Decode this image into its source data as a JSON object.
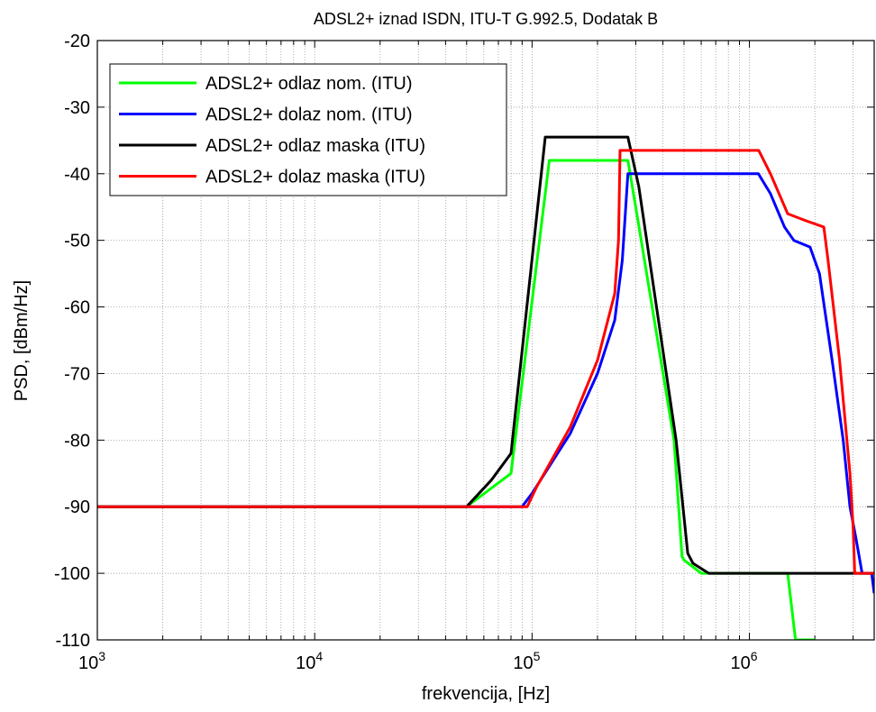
{
  "chart_data": {
    "type": "line",
    "title": "ADSL2+ iznad ISDN, ITU-T G.992.5, Dodatak B",
    "xlabel": "frekvencija, [Hz]",
    "ylabel": "PSD, [dBm/Hz]",
    "x_scale": "log",
    "xlim": [
      1000,
      3750000
    ],
    "ylim": [
      -110,
      -20
    ],
    "grid": true,
    "legend_position": "top-left",
    "x_ticks": [
      {
        "value": 1000,
        "base": "10",
        "exp": "3"
      },
      {
        "value": 10000,
        "base": "10",
        "exp": "4"
      },
      {
        "value": 100000,
        "base": "10",
        "exp": "5"
      },
      {
        "value": 1000000,
        "base": "10",
        "exp": "6"
      }
    ],
    "y_ticks": [
      -20,
      -30,
      -40,
      -50,
      -60,
      -70,
      -80,
      -90,
      -100,
      -110
    ],
    "series": [
      {
        "name": "ADSL2+ odlaz nom. (ITU)",
        "color": "#00ff00",
        "points": [
          [
            1000,
            -90
          ],
          [
            50000,
            -90
          ],
          [
            80000,
            -85
          ],
          [
            120000,
            -38
          ],
          [
            276000,
            -38
          ],
          [
            300000,
            -45
          ],
          [
            450000,
            -80
          ],
          [
            490000,
            -97.5
          ],
          [
            500000,
            -98
          ],
          [
            600000,
            -100
          ],
          [
            1500000,
            -100
          ],
          [
            1630000,
            -110
          ],
          [
            2000000,
            -110
          ]
        ]
      },
      {
        "name": "ADSL2+ dolaz nom. (ITU)",
        "color": "#0000ff",
        "points": [
          [
            1000,
            -90
          ],
          [
            90000,
            -90
          ],
          [
            100000,
            -88
          ],
          [
            150000,
            -79
          ],
          [
            200000,
            -70
          ],
          [
            240000,
            -62
          ],
          [
            260000,
            -53
          ],
          [
            276000,
            -40
          ],
          [
            1100000,
            -40
          ],
          [
            1250000,
            -43
          ],
          [
            1450000,
            -48
          ],
          [
            1600000,
            -50
          ],
          [
            1900000,
            -51
          ],
          [
            2100000,
            -55
          ],
          [
            2400000,
            -68
          ],
          [
            2700000,
            -80
          ],
          [
            2900000,
            -90
          ],
          [
            3100000,
            -95
          ],
          [
            3300000,
            -100
          ],
          [
            3650000,
            -100
          ],
          [
            3750000,
            -103
          ]
        ]
      },
      {
        "name": "ADSL2+ odlaz maska (ITU)",
        "color": "#000000",
        "points": [
          [
            1000,
            -90
          ],
          [
            50000,
            -90
          ],
          [
            65000,
            -86
          ],
          [
            80000,
            -82
          ],
          [
            115000,
            -34.5
          ],
          [
            276000,
            -34.5
          ],
          [
            310000,
            -42
          ],
          [
            460000,
            -80
          ],
          [
            520000,
            -97
          ],
          [
            550000,
            -98.5
          ],
          [
            650000,
            -100
          ],
          [
            3750000,
            -100
          ]
        ]
      },
      {
        "name": "ADSL2+ dolaz maska (ITU)",
        "color": "#ff0000",
        "points": [
          [
            1000,
            -90
          ],
          [
            95000,
            -90
          ],
          [
            105000,
            -87
          ],
          [
            150000,
            -78
          ],
          [
            200000,
            -68
          ],
          [
            240000,
            -58
          ],
          [
            250000,
            -50
          ],
          [
            254000,
            -36.5
          ],
          [
            1104000,
            -36.5
          ],
          [
            1250000,
            -40
          ],
          [
            1500000,
            -46
          ],
          [
            1800000,
            -47
          ],
          [
            2200000,
            -48
          ],
          [
            2300000,
            -53
          ],
          [
            2600000,
            -68
          ],
          [
            2900000,
            -85
          ],
          [
            3000000,
            -93
          ],
          [
            3050000,
            -100
          ],
          [
            3750000,
            -100
          ]
        ]
      }
    ]
  }
}
